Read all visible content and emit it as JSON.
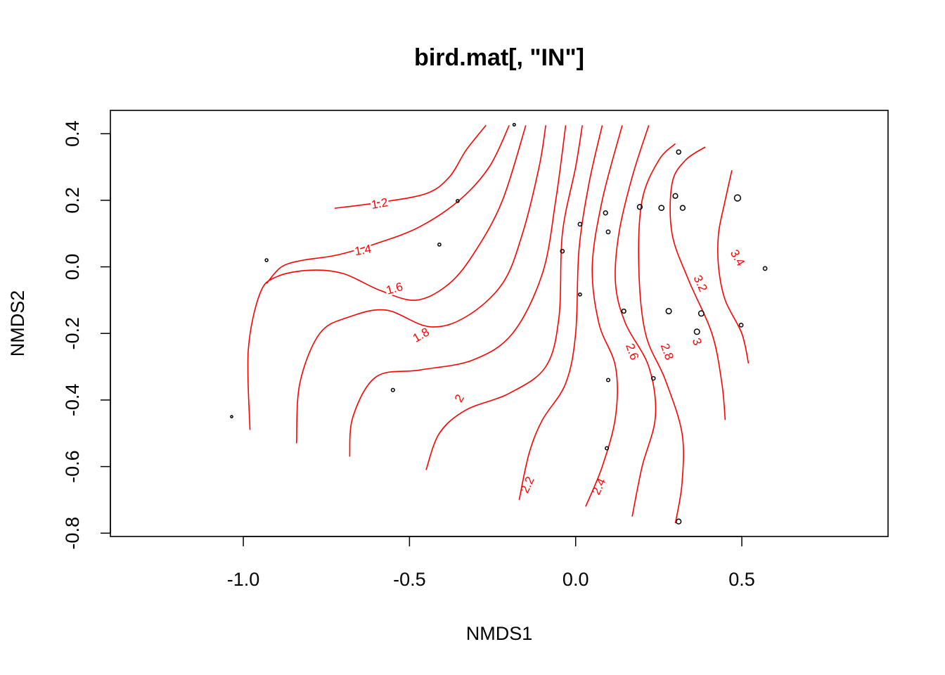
{
  "chart_data": {
    "type": "scatter",
    "title": "bird.mat[, \"IN\"]",
    "xlabel": "NMDS1",
    "ylabel": "NMDS2",
    "xlim": [
      -1.4,
      0.94
    ],
    "ylim": [
      -0.81,
      0.47
    ],
    "xticks": [
      -1.0,
      -0.5,
      0.0,
      0.5
    ],
    "xtick_labels": [
      "-1.0",
      "-0.5",
      "0.0",
      "0.5"
    ],
    "yticks": [
      -0.8,
      -0.6,
      -0.4,
      -0.2,
      0.0,
      0.2,
      0.4
    ],
    "ytick_labels": [
      "-0.8",
      "-0.6",
      "-0.4",
      "-0.2",
      "0.0",
      "0.2",
      "0.4"
    ],
    "grid": false,
    "colors": {
      "points": "#000000",
      "contours": "#ff0000",
      "frame": "#000000"
    },
    "points": [
      {
        "x": -1.035,
        "y": -0.45,
        "size": 1.2
      },
      {
        "x": -0.93,
        "y": 0.02,
        "size": 1.5
      },
      {
        "x": -0.55,
        "y": -0.37,
        "size": 1.8
      },
      {
        "x": -0.41,
        "y": 0.067,
        "size": 1.6
      },
      {
        "x": -0.355,
        "y": 0.198,
        "size": 1.6
      },
      {
        "x": -0.185,
        "y": 0.427,
        "size": 1.4
      },
      {
        "x": -0.04,
        "y": 0.047,
        "size": 2.0
      },
      {
        "x": 0.013,
        "y": 0.128,
        "size": 2.0
      },
      {
        "x": 0.013,
        "y": -0.083,
        "size": 1.6
      },
      {
        "x": 0.09,
        "y": 0.162,
        "size": 2.2
      },
      {
        "x": 0.098,
        "y": 0.105,
        "size": 2.1
      },
      {
        "x": 0.098,
        "y": -0.34,
        "size": 1.8
      },
      {
        "x": 0.094,
        "y": -0.545,
        "size": 1.8
      },
      {
        "x": 0.145,
        "y": -0.133,
        "size": 2.2
      },
      {
        "x": 0.193,
        "y": 0.18,
        "size": 2.6
      },
      {
        "x": 0.234,
        "y": -0.335,
        "size": 1.9
      },
      {
        "x": 0.258,
        "y": 0.177,
        "size": 2.8
      },
      {
        "x": 0.28,
        "y": -0.133,
        "size": 2.9
      },
      {
        "x": 0.3,
        "y": 0.213,
        "size": 2.5
      },
      {
        "x": 0.31,
        "y": 0.345,
        "size": 2.3
      },
      {
        "x": 0.322,
        "y": 0.177,
        "size": 2.6
      },
      {
        "x": 0.31,
        "y": -0.765,
        "size": 2.6
      },
      {
        "x": 0.365,
        "y": -0.195,
        "size": 2.9
      },
      {
        "x": 0.378,
        "y": -0.14,
        "size": 2.9
      },
      {
        "x": 0.487,
        "y": 0.207,
        "size": 3.4
      },
      {
        "x": 0.498,
        "y": -0.175,
        "size": 2.0
      },
      {
        "x": 0.57,
        "y": -0.005,
        "size": 2.0
      }
    ],
    "contours": [
      {
        "level": "1.2",
        "label_at": [
          -0.59,
          0.19
        ],
        "label_angle": -10,
        "path": [
          [
            -0.725,
            0.176
          ],
          [
            -0.6,
            0.192
          ],
          [
            -0.45,
            0.22
          ],
          [
            -0.38,
            0.27
          ],
          [
            -0.33,
            0.35
          ],
          [
            -0.27,
            0.425
          ]
        ]
      },
      {
        "level": "1.4",
        "label_at": [
          -0.64,
          0.05
        ],
        "label_angle": -10,
        "path": [
          [
            -0.93,
            -0.05
          ],
          [
            -0.885,
            0.0
          ],
          [
            -0.82,
            0.02
          ],
          [
            -0.72,
            0.035
          ],
          [
            -0.6,
            0.07
          ],
          [
            -0.47,
            0.12
          ],
          [
            -0.35,
            0.2
          ],
          [
            -0.26,
            0.3
          ],
          [
            -0.2,
            0.425
          ]
        ]
      },
      {
        "level": "1.6",
        "label_at": [
          -0.545,
          -0.065
        ],
        "label_angle": -16,
        "path": [
          [
            -0.98,
            -0.49
          ],
          [
            -0.985,
            -0.25
          ],
          [
            -0.95,
            -0.08
          ],
          [
            -0.9,
            -0.03
          ],
          [
            -0.8,
            -0.01
          ],
          [
            -0.7,
            -0.02
          ],
          [
            -0.59,
            -0.07
          ],
          [
            -0.48,
            -0.1
          ],
          [
            -0.38,
            -0.05
          ],
          [
            -0.3,
            0.05
          ],
          [
            -0.22,
            0.2
          ],
          [
            -0.15,
            0.425
          ]
        ]
      },
      {
        "level": "1.8",
        "label_at": [
          -0.465,
          -0.205
        ],
        "label_angle": -30,
        "path": [
          [
            -0.84,
            -0.53
          ],
          [
            -0.83,
            -0.35
          ],
          [
            -0.77,
            -0.2
          ],
          [
            -0.68,
            -0.15
          ],
          [
            -0.57,
            -0.13
          ],
          [
            -0.44,
            -0.18
          ],
          [
            -0.33,
            -0.15
          ],
          [
            -0.22,
            -0.05
          ],
          [
            -0.16,
            0.1
          ],
          [
            -0.11,
            0.3
          ],
          [
            -0.09,
            0.425
          ]
        ]
      },
      {
        "level": "2",
        "label_at": [
          -0.35,
          -0.395
        ],
        "label_angle": -60,
        "path": [
          [
            -0.68,
            -0.57
          ],
          [
            -0.67,
            -0.45
          ],
          [
            -0.6,
            -0.33
          ],
          [
            -0.47,
            -0.31
          ],
          [
            -0.31,
            -0.28
          ],
          [
            -0.19,
            -0.2
          ],
          [
            -0.1,
            -0.02
          ],
          [
            -0.06,
            0.2
          ],
          [
            -0.03,
            0.425
          ]
        ]
      },
      {
        "level": "2.2",
        "label_at": [
          -0.145,
          -0.655
        ],
        "label_angle": -65,
        "path": [
          [
            -0.45,
            -0.61
          ],
          [
            -0.41,
            -0.5
          ],
          [
            -0.33,
            -0.43
          ],
          [
            -0.2,
            -0.38
          ],
          [
            -0.09,
            -0.3
          ],
          [
            -0.05,
            -0.15
          ],
          [
            -0.04,
            0.1
          ],
          [
            0.0,
            0.3
          ],
          [
            0.02,
            0.425
          ]
        ]
      },
      {
        "level": "2.4",
        "label_at": [
          0.07,
          -0.66
        ],
        "label_angle": -65,
        "path": [
          [
            -0.17,
            -0.7
          ],
          [
            -0.14,
            -0.56
          ],
          [
            -0.1,
            -0.46
          ],
          [
            -0.03,
            -0.35
          ],
          [
            0.0,
            -0.2
          ],
          [
            0.01,
            0.05
          ],
          [
            0.04,
            0.25
          ],
          [
            0.08,
            0.425
          ]
        ]
      },
      {
        "level": "2.6",
        "label_at": [
          0.17,
          -0.255
        ],
        "label_angle": 70,
        "path": [
          [
            0.03,
            -0.72
          ],
          [
            0.08,
            -0.6
          ],
          [
            0.12,
            -0.45
          ],
          [
            0.12,
            -0.3
          ],
          [
            0.07,
            -0.17
          ],
          [
            0.05,
            0.0
          ],
          [
            0.08,
            0.2
          ],
          [
            0.14,
            0.425
          ]
        ]
      },
      {
        "level": "2.8",
        "label_at": [
          0.275,
          -0.255
        ],
        "label_angle": 70,
        "path": [
          [
            0.17,
            -0.75
          ],
          [
            0.2,
            -0.6
          ],
          [
            0.24,
            -0.45
          ],
          [
            0.22,
            -0.3
          ],
          [
            0.15,
            -0.17
          ],
          [
            0.12,
            -0.05
          ],
          [
            0.13,
            0.1
          ],
          [
            0.17,
            0.27
          ],
          [
            0.22,
            0.425
          ]
        ]
      },
      {
        "level": "3",
        "label_at": [
          0.365,
          -0.225
        ],
        "label_angle": 70,
        "path": [
          [
            0.3,
            -0.77
          ],
          [
            0.32,
            -0.65
          ],
          [
            0.32,
            -0.5
          ],
          [
            0.27,
            -0.34
          ],
          [
            0.21,
            -0.2
          ],
          [
            0.19,
            0.0
          ],
          [
            0.2,
            0.2
          ],
          [
            0.25,
            0.32
          ],
          [
            0.3,
            0.37
          ]
        ]
      },
      {
        "level": "3.2",
        "label_at": [
          0.375,
          -0.05
        ],
        "label_angle": 65,
        "path": [
          [
            0.45,
            -0.46
          ],
          [
            0.44,
            -0.35
          ],
          [
            0.41,
            -0.2
          ],
          [
            0.34,
            -0.04
          ],
          [
            0.29,
            0.1
          ],
          [
            0.29,
            0.25
          ],
          [
            0.33,
            0.32
          ],
          [
            0.39,
            0.36
          ]
        ]
      },
      {
        "level": "3.4",
        "label_at": [
          0.487,
          0.027
        ],
        "label_angle": 60,
        "path": [
          [
            0.52,
            -0.29
          ],
          [
            0.5,
            -0.2
          ],
          [
            0.45,
            -0.1
          ],
          [
            0.43,
            0.0
          ],
          [
            0.43,
            0.1
          ],
          [
            0.45,
            0.2
          ],
          [
            0.47,
            0.29
          ]
        ]
      }
    ]
  }
}
